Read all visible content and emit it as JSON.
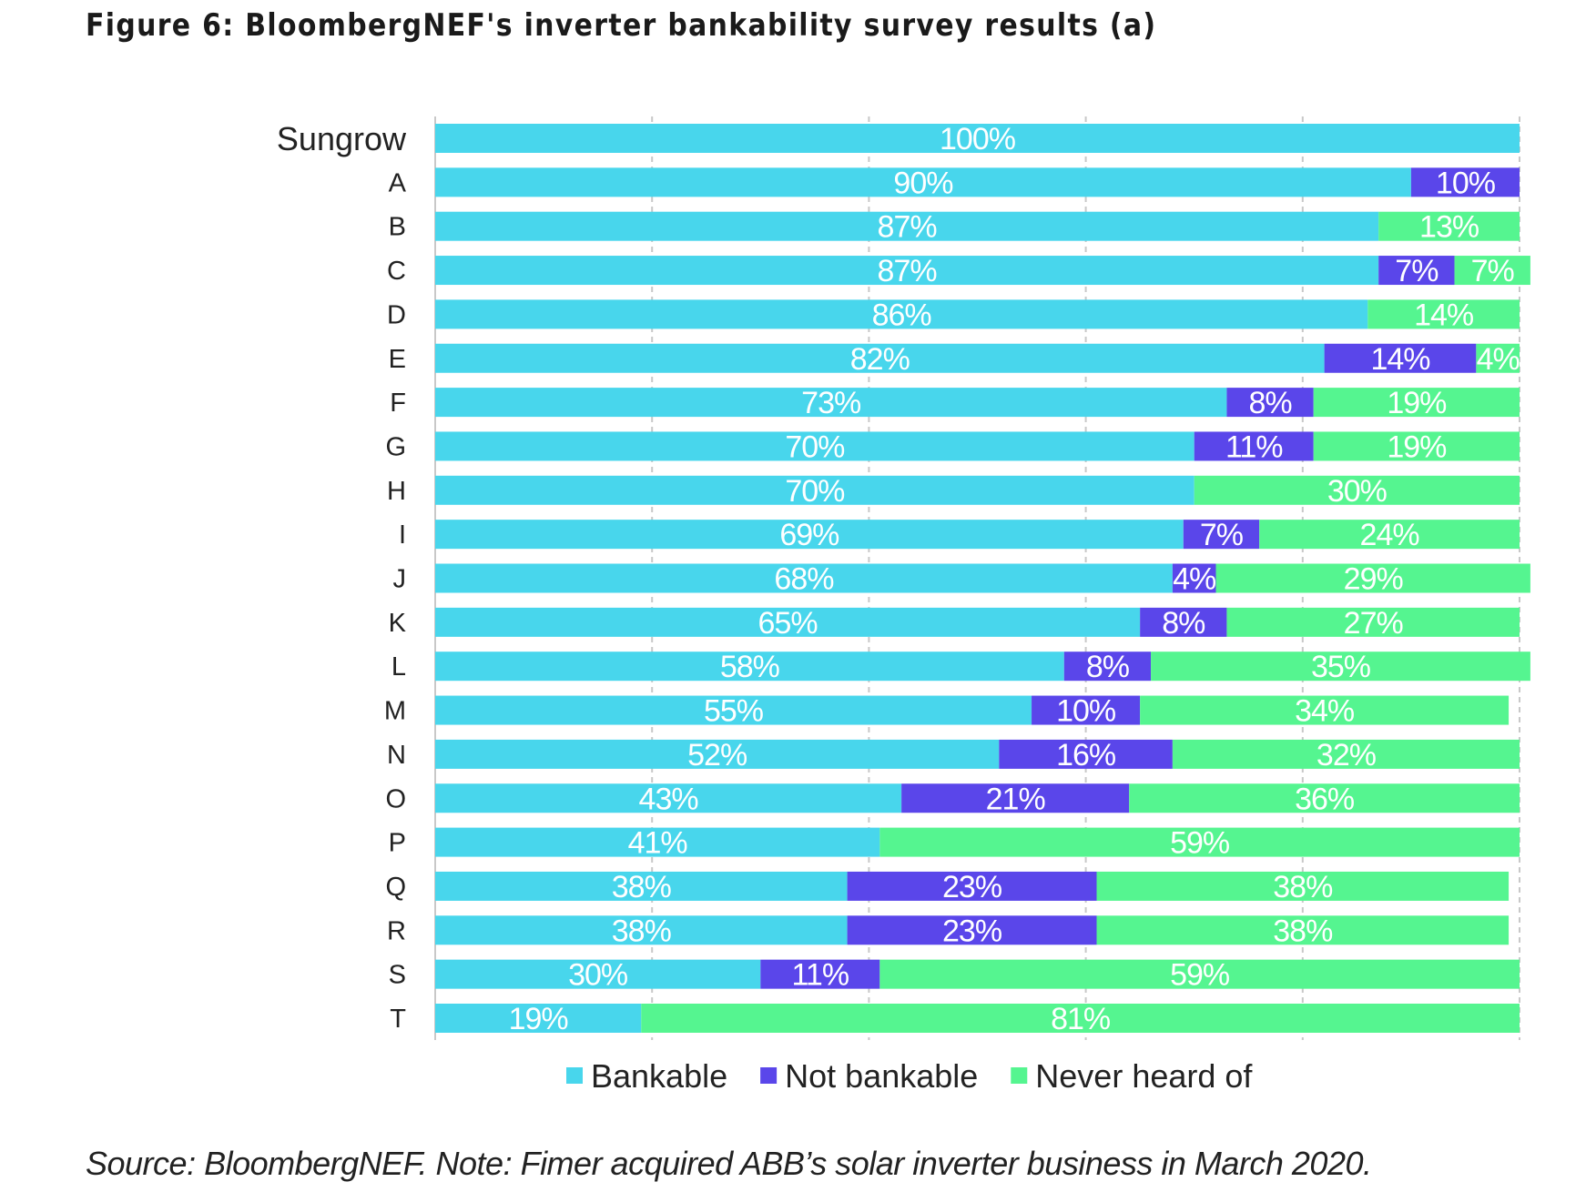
{
  "title": "Figure 6:  BloombergNEF's inverter bankability survey results (a)",
  "source": "Source: BloombergNEF. Note: Fimer acquired ABB’s solar inverter business in March 2020.",
  "chart_data": {
    "type": "bar",
    "orientation": "horizontal",
    "stacked": true,
    "title": "",
    "xlim": [
      0,
      100
    ],
    "grid": "vertical dashed",
    "legend_position": "bottom",
    "categories": [
      "Sungrow",
      "A",
      "B",
      "C",
      "D",
      "E",
      "F",
      "G",
      "H",
      "I",
      "J",
      "K",
      "L",
      "M",
      "N",
      "O",
      "P",
      "Q",
      "R",
      "S",
      "T"
    ],
    "series": [
      {
        "name": "Bankable",
        "color": "#48D6EC",
        "values": [
          100,
          90,
          87,
          87,
          86,
          82,
          73,
          70,
          70,
          69,
          68,
          65,
          58,
          55,
          52,
          43,
          41,
          38,
          38,
          30,
          19
        ]
      },
      {
        "name": "Not bankable",
        "color": "#5A46EA",
        "values": [
          0,
          10,
          0,
          7,
          0,
          14,
          8,
          11,
          0,
          7,
          4,
          8,
          8,
          10,
          16,
          21,
          0,
          23,
          23,
          11,
          0
        ]
      },
      {
        "name": "Never heard of",
        "color": "#55F590",
        "values": [
          0,
          0,
          13,
          7,
          14,
          4,
          19,
          19,
          30,
          24,
          29,
          27,
          35,
          34,
          32,
          36,
          59,
          38,
          38,
          59,
          81
        ]
      }
    ]
  }
}
